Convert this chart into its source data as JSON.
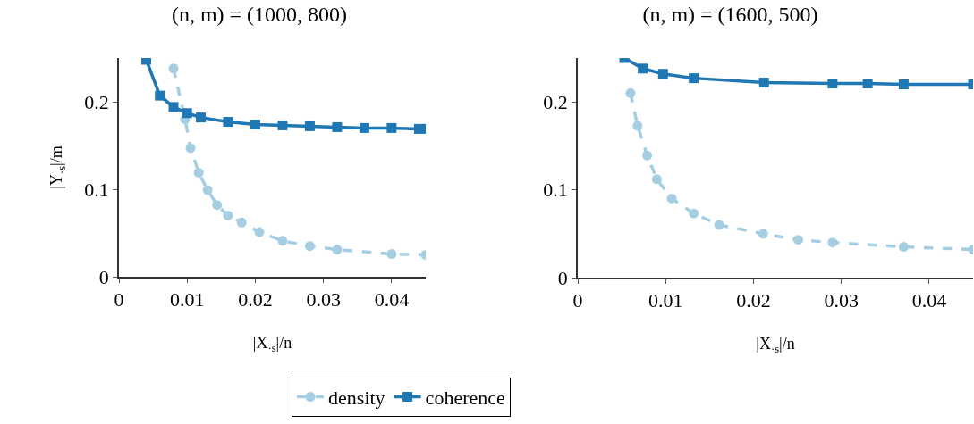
{
  "chart_data": [
    {
      "type": "line",
      "title": "(n, m) = (1000, 800)",
      "xlabel": "|X$_{·s}$|/n",
      "ylabel": "|Y$_{·s}$|/m",
      "xlim": [
        0,
        0.045
      ],
      "ylim": [
        0,
        0.25
      ],
      "xticks": [
        0,
        0.01,
        0.02,
        0.03,
        0.04
      ],
      "yticks": [
        0,
        0.1,
        0.2
      ],
      "grid": false,
      "legend": "bottom",
      "series": [
        {
          "name": "density",
          "color": "#a6cee3",
          "line_style": "dashed",
          "marker": "circle",
          "x": [
            0.008,
            0.0097,
            0.0105,
            0.0117,
            0.013,
            0.0144,
            0.016,
            0.018,
            0.0206,
            0.024,
            0.028,
            0.032,
            0.04,
            0.045
          ],
          "values": [
            0.238,
            0.18,
            0.147,
            0.119,
            0.099,
            0.082,
            0.07,
            0.062,
            0.051,
            0.041,
            0.035,
            0.031,
            0.026,
            0.025
          ]
        },
        {
          "name": "coherence",
          "color": "#1f77b4",
          "line_style": "solid",
          "marker": "square",
          "x": [
            0.004,
            0.006,
            0.008,
            0.01,
            0.012,
            0.016,
            0.02,
            0.024,
            0.028,
            0.032,
            0.036,
            0.04,
            0.044,
            0.045
          ],
          "values": [
            0.248,
            0.207,
            0.194,
            0.187,
            0.182,
            0.177,
            0.174,
            0.173,
            0.172,
            0.171,
            0.17,
            0.17,
            0.169,
            0.169
          ]
        }
      ]
    },
    {
      "type": "line",
      "title": "(n, m) = (1600, 500)",
      "xlabel": "|X$_{·s}$|/n",
      "xlim": [
        0,
        0.045
      ],
      "ylim": [
        0,
        0.25
      ],
      "xticks": [
        0,
        0.01,
        0.02,
        0.03,
        0.04
      ],
      "yticks": [
        0,
        0.1,
        0.2
      ],
      "grid": false,
      "series": [
        {
          "color": "#a6cee3",
          "line_style": "dashed",
          "marker": "circle",
          "x": [
            0.006,
            0.0068,
            0.0079,
            0.009,
            0.0107,
            0.0132,
            0.0161,
            0.0211,
            0.0251,
            0.029,
            0.0371,
            0.045
          ],
          "values": [
            0.21,
            0.173,
            0.139,
            0.112,
            0.09,
            0.073,
            0.06,
            0.05,
            0.043,
            0.04,
            0.035,
            0.032
          ]
        },
        {
          "color": "#1f77b4",
          "line_style": "solid",
          "marker": "square",
          "x": [
            0.0053,
            0.0074,
            0.0097,
            0.0132,
            0.0212,
            0.029,
            0.033,
            0.0371,
            0.045
          ],
          "values": [
            0.25,
            0.238,
            0.232,
            0.227,
            0.222,
            0.221,
            0.221,
            0.22,
            0.22
          ]
        }
      ]
    }
  ]
}
